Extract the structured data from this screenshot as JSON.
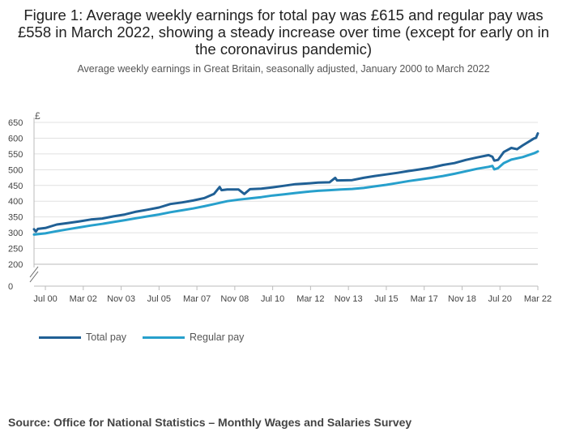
{
  "title": "Figure 1: Average weekly earnings for total pay was £615 and regular pay was £558 in March 2022, showing a steady increase over time (except for early on in the coronavirus pandemic)",
  "subtitle": "Average weekly earnings in Great Britain, seasonally adjusted, January 2000 to March 2022",
  "source": "Source: Office for National Statistics – Monthly Wages and Salaries Survey",
  "colors": {
    "total": "#206095",
    "regular": "#27a0cc",
    "grid": "#e0e0e0",
    "axis": "#bbbbbb"
  },
  "chart_data": {
    "type": "line",
    "ylabel": "£",
    "ylim": [
      200,
      650
    ],
    "y_axis_break": true,
    "y_ticks": [
      "650",
      "600",
      "550",
      "500",
      "450",
      "400",
      "350",
      "300",
      "250",
      "200",
      "0"
    ],
    "x_ticks": [
      "Jul 00",
      "Mar 02",
      "Nov 03",
      "Jul 05",
      "Mar 07",
      "Nov 08",
      "Jul 10",
      "Mar 12",
      "Nov 13",
      "Jul 15",
      "Mar 17",
      "Nov 18",
      "Jul 20",
      "Mar 22"
    ],
    "grid": true,
    "legend_position": "bottom-left",
    "series": [
      {
        "name": "Total pay",
        "points": [
          [
            "Jan 00",
            311
          ],
          [
            "Feb 00",
            304
          ],
          [
            "Mar 00",
            312
          ],
          [
            "Jul 00",
            315
          ],
          [
            "Jan 01",
            326
          ],
          [
            "Jul 01",
            331
          ],
          [
            "Jan 02",
            336
          ],
          [
            "Jul 02",
            342
          ],
          [
            "Jan 03",
            345
          ],
          [
            "Jul 03",
            352
          ],
          [
            "Jan 04",
            358
          ],
          [
            "Jul 04",
            367
          ],
          [
            "Jan 05",
            373
          ],
          [
            "Jul 05",
            380
          ],
          [
            "Jan 06",
            391
          ],
          [
            "Jul 06",
            396
          ],
          [
            "Jan 07",
            402
          ],
          [
            "Jul 07",
            410
          ],
          [
            "Dec 07",
            423
          ],
          [
            "Mar 08",
            445
          ],
          [
            "Apr 08",
            435
          ],
          [
            "Jul 08",
            437
          ],
          [
            "Jan 09",
            437
          ],
          [
            "Apr 09",
            423
          ],
          [
            "Jul 09",
            438
          ],
          [
            "Jan 10",
            440
          ],
          [
            "Jul 10",
            444
          ],
          [
            "Jan 11",
            449
          ],
          [
            "Jul 11",
            454
          ],
          [
            "Jan 12",
            456
          ],
          [
            "Jul 12",
            459
          ],
          [
            "Jan 13",
            460
          ],
          [
            "Apr 13",
            474
          ],
          [
            "May 13",
            466
          ],
          [
            "Jan 14",
            467
          ],
          [
            "Jul 14",
            474
          ],
          [
            "Jan 15",
            480
          ],
          [
            "Jul 15",
            485
          ],
          [
            "Jan 16",
            490
          ],
          [
            "Jul 16",
            496
          ],
          [
            "Jan 17",
            501
          ],
          [
            "Jul 17",
            507
          ],
          [
            "Jan 18",
            515
          ],
          [
            "Jul 18",
            521
          ],
          [
            "Jan 19",
            531
          ],
          [
            "Jul 19",
            539
          ],
          [
            "Jan 20",
            546
          ],
          [
            "Mar 20",
            541
          ],
          [
            "Apr 20",
            529
          ],
          [
            "Jun 20",
            531
          ],
          [
            "Sep 20",
            556
          ],
          [
            "Jan 21",
            569
          ],
          [
            "Apr 21",
            565
          ],
          [
            "Jul 21",
            577
          ],
          [
            "Jan 22",
            599
          ],
          [
            "Feb 22",
            601
          ],
          [
            "Mar 22",
            615
          ]
        ]
      },
      {
        "name": "Regular pay",
        "points": [
          [
            "Jan 00",
            294
          ],
          [
            "Jul 00",
            298
          ],
          [
            "Jan 01",
            305
          ],
          [
            "Jul 01",
            311
          ],
          [
            "Jan 02",
            317
          ],
          [
            "Jul 02",
            323
          ],
          [
            "Jan 03",
            328
          ],
          [
            "Jul 03",
            334
          ],
          [
            "Jan 04",
            340
          ],
          [
            "Jul 04",
            346
          ],
          [
            "Jan 05",
            352
          ],
          [
            "Jul 05",
            358
          ],
          [
            "Jan 06",
            365
          ],
          [
            "Jul 06",
            371
          ],
          [
            "Jan 07",
            377
          ],
          [
            "Jul 07",
            384
          ],
          [
            "Jan 08",
            392
          ],
          [
            "Jul 08",
            400
          ],
          [
            "Jan 09",
            405
          ],
          [
            "Jul 09",
            409
          ],
          [
            "Jan 10",
            413
          ],
          [
            "Jul 10",
            418
          ],
          [
            "Jan 11",
            422
          ],
          [
            "Jul 11",
            426
          ],
          [
            "Jan 12",
            430
          ],
          [
            "Jul 12",
            433
          ],
          [
            "Jan 13",
            435
          ],
          [
            "Jul 13",
            437
          ],
          [
            "Jan 14",
            439
          ],
          [
            "Jul 14",
            442
          ],
          [
            "Jan 15",
            447
          ],
          [
            "Jul 15",
            452
          ],
          [
            "Jan 16",
            458
          ],
          [
            "Jul 16",
            464
          ],
          [
            "Jan 17",
            469
          ],
          [
            "Jul 17",
            474
          ],
          [
            "Jan 18",
            480
          ],
          [
            "Jul 18",
            487
          ],
          [
            "Jan 19",
            495
          ],
          [
            "Jul 19",
            503
          ],
          [
            "Jan 20",
            509
          ],
          [
            "Mar 20",
            512
          ],
          [
            "Apr 20",
            501
          ],
          [
            "Jun 20",
            505
          ],
          [
            "Sep 20",
            521
          ],
          [
            "Jan 21",
            532
          ],
          [
            "Jul 21",
            540
          ],
          [
            "Jan 22",
            552
          ],
          [
            "Mar 22",
            558
          ]
        ]
      }
    ]
  }
}
